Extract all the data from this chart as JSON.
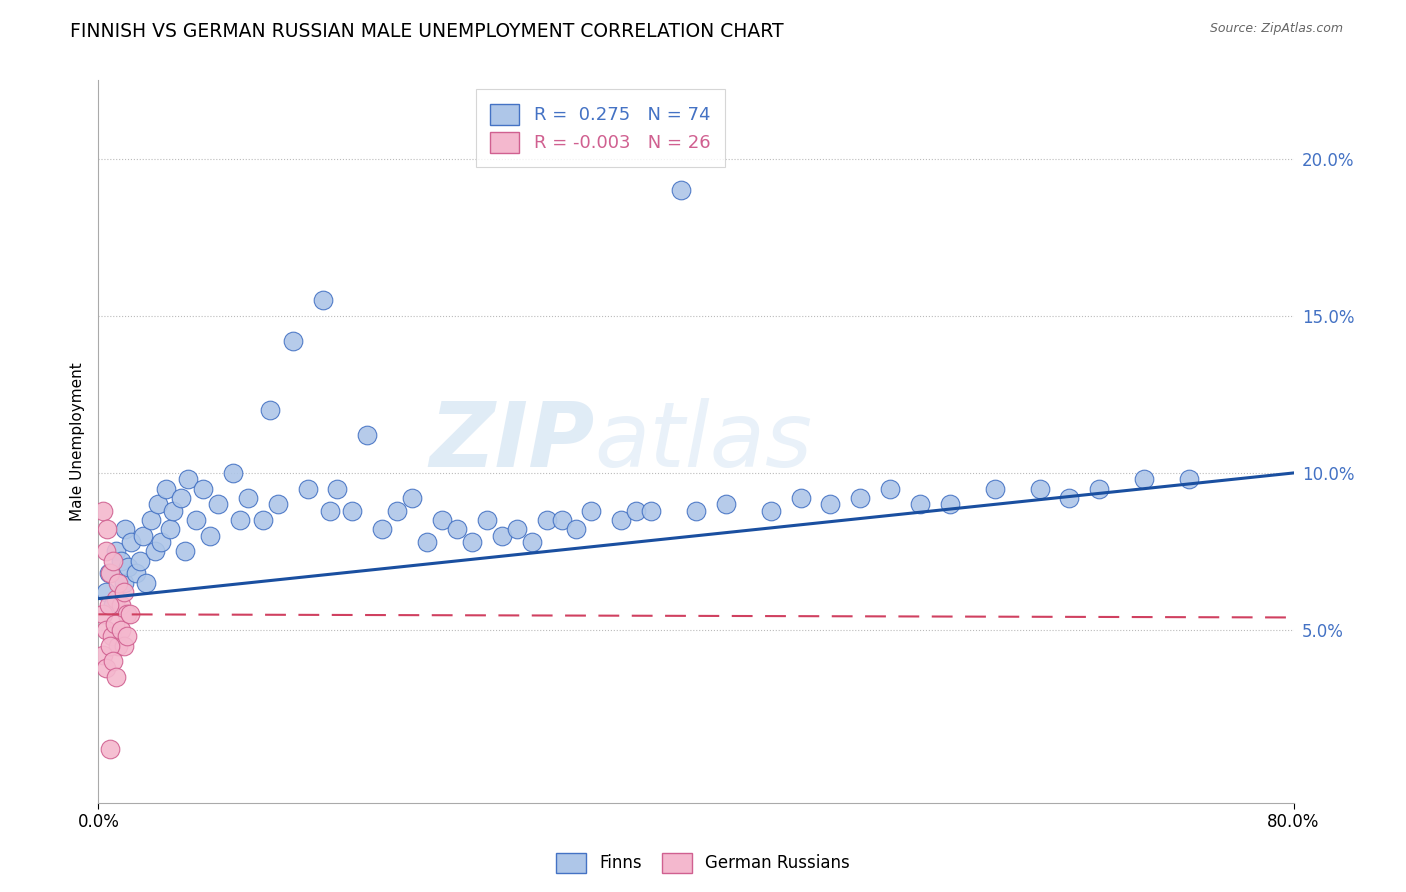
{
  "title": "FINNISH VS GERMAN RUSSIAN MALE UNEMPLOYMENT CORRELATION CHART",
  "source": "Source: ZipAtlas.com",
  "ylabel": "Male Unemployment",
  "xlim": [
    0.0,
    0.8
  ],
  "ylim": [
    -0.005,
    0.225
  ],
  "yticks": [
    0.05,
    0.1,
    0.15,
    0.2
  ],
  "ytick_labels": [
    "5.0%",
    "10.0%",
    "15.0%",
    "20.0%"
  ],
  "xtick_labels": [
    "0.0%",
    "80.0%"
  ],
  "finns_color": "#aec6e8",
  "finns_edge_color": "#4472c4",
  "gr_color": "#f4b8ce",
  "gr_edge_color": "#d06090",
  "finn_line_color": "#1a4fa0",
  "gr_line_color": "#d04060",
  "finns_R": 0.275,
  "finns_N": 74,
  "gr_R": -0.003,
  "gr_N": 26,
  "finn_line_y0": 0.06,
  "finn_line_y1": 0.1,
  "gr_line_y0": 0.055,
  "gr_line_y1": 0.054,
  "finns_x": [
    0.005,
    0.007,
    0.01,
    0.012,
    0.015,
    0.017,
    0.018,
    0.02,
    0.022,
    0.025,
    0.028,
    0.03,
    0.032,
    0.035,
    0.038,
    0.04,
    0.042,
    0.045,
    0.048,
    0.05,
    0.055,
    0.058,
    0.06,
    0.065,
    0.07,
    0.075,
    0.08,
    0.09,
    0.095,
    0.1,
    0.11,
    0.115,
    0.12,
    0.13,
    0.14,
    0.15,
    0.155,
    0.16,
    0.17,
    0.18,
    0.19,
    0.2,
    0.21,
    0.22,
    0.23,
    0.24,
    0.25,
    0.26,
    0.27,
    0.28,
    0.29,
    0.3,
    0.31,
    0.32,
    0.33,
    0.35,
    0.36,
    0.37,
    0.39,
    0.4,
    0.42,
    0.45,
    0.47,
    0.49,
    0.51,
    0.53,
    0.55,
    0.57,
    0.6,
    0.63,
    0.65,
    0.67,
    0.7,
    0.73
  ],
  "finns_y": [
    0.062,
    0.068,
    0.058,
    0.075,
    0.072,
    0.065,
    0.082,
    0.07,
    0.078,
    0.068,
    0.072,
    0.08,
    0.065,
    0.085,
    0.075,
    0.09,
    0.078,
    0.095,
    0.082,
    0.088,
    0.092,
    0.075,
    0.098,
    0.085,
    0.095,
    0.08,
    0.09,
    0.1,
    0.085,
    0.092,
    0.085,
    0.12,
    0.09,
    0.142,
    0.095,
    0.155,
    0.088,
    0.095,
    0.088,
    0.112,
    0.082,
    0.088,
    0.092,
    0.078,
    0.085,
    0.082,
    0.078,
    0.085,
    0.08,
    0.082,
    0.078,
    0.085,
    0.085,
    0.082,
    0.088,
    0.085,
    0.088,
    0.088,
    0.19,
    0.088,
    0.09,
    0.088,
    0.092,
    0.09,
    0.092,
    0.095,
    0.09,
    0.09,
    0.095,
    0.095,
    0.092,
    0.095,
    0.098,
    0.098
  ],
  "gr_x": [
    0.003,
    0.005,
    0.006,
    0.008,
    0.01,
    0.012,
    0.013,
    0.015,
    0.017,
    0.019,
    0.003,
    0.005,
    0.007,
    0.009,
    0.011,
    0.013,
    0.015,
    0.017,
    0.019,
    0.021,
    0.003,
    0.005,
    0.008,
    0.01,
    0.012,
    0.008
  ],
  "gr_y": [
    0.088,
    0.075,
    0.082,
    0.068,
    0.072,
    0.06,
    0.065,
    0.058,
    0.062,
    0.055,
    0.055,
    0.05,
    0.058,
    0.048,
    0.052,
    0.045,
    0.05,
    0.045,
    0.048,
    0.055,
    0.042,
    0.038,
    0.045,
    0.04,
    0.035,
    0.012
  ]
}
